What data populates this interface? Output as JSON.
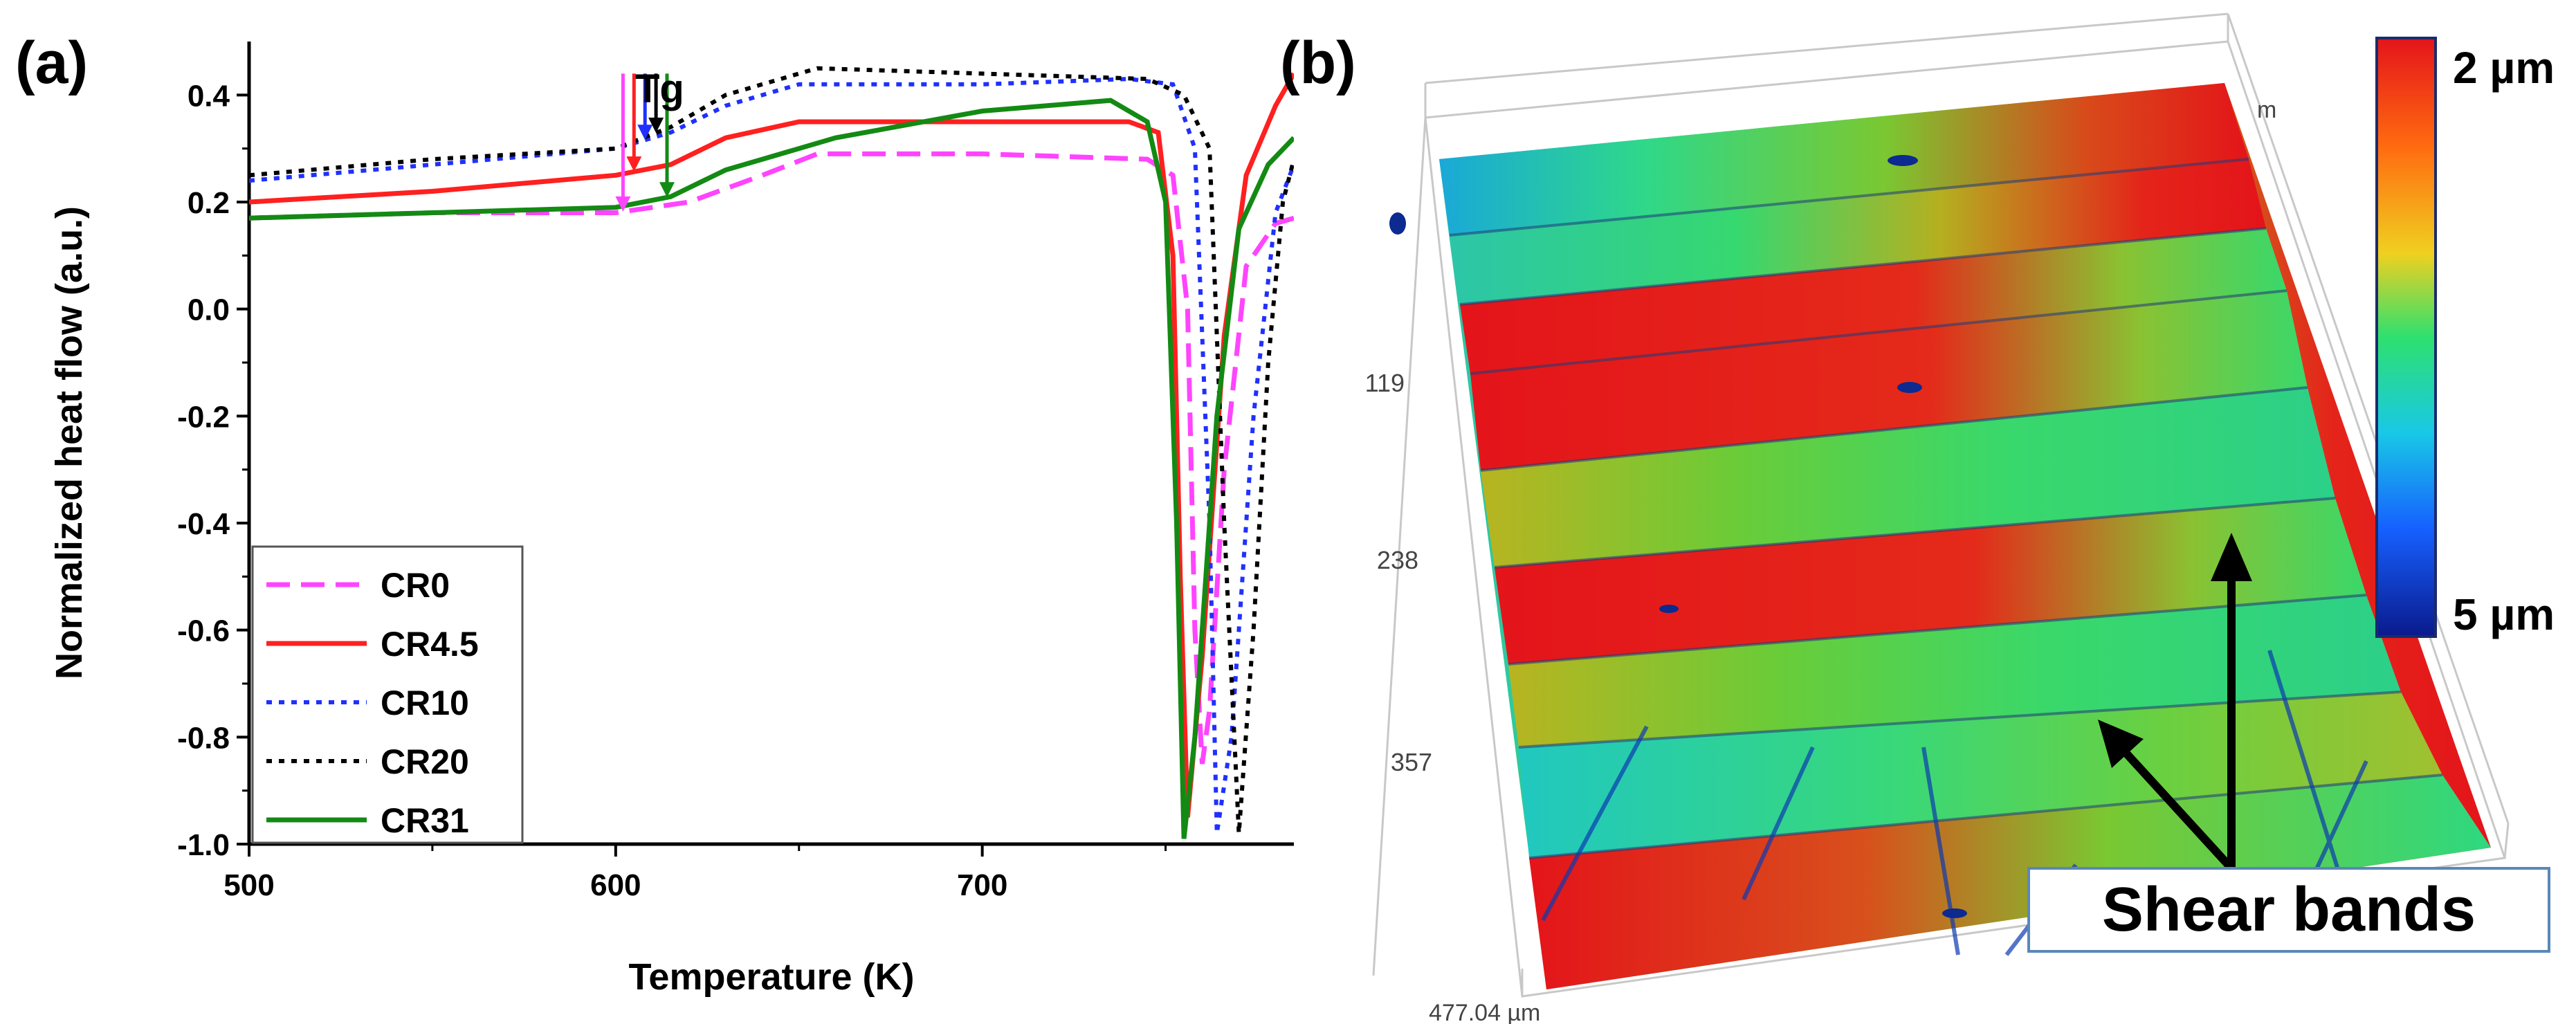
{
  "figure": {
    "panel_a_label": "(a)",
    "panel_b_label": "(b)"
  },
  "chart_data": [
    {
      "type": "line",
      "title": "",
      "xlabel": "Temperature (K)",
      "ylabel": "Normalized heat flow (a.u.)",
      "xlim": [
        500,
        785
      ],
      "ylim": [
        -1.0,
        0.5
      ],
      "x_ticks": [
        500,
        600,
        700
      ],
      "x_tick_labels": [
        "500",
        "600",
        "700"
      ],
      "y_ticks": [
        -1.0,
        -0.8,
        -0.6,
        -0.4,
        -0.2,
        0.0,
        0.2,
        0.4
      ],
      "y_tick_labels": [
        "-1.0",
        "-0.8",
        "-0.6",
        "-0.4",
        "-0.2",
        "0.0",
        "0.2",
        "0.4"
      ],
      "annotation": {
        "text": "Tg",
        "markers": [
          {
            "series": "CR0",
            "x": 602
          },
          {
            "series": "CR4.5",
            "x": 605
          },
          {
            "series": "CR10",
            "x": 608
          },
          {
            "series": "CR20",
            "x": 611
          },
          {
            "series": "CR31",
            "x": 614
          }
        ]
      },
      "legend_position": "bottom-left",
      "series": [
        {
          "name": "CR0",
          "color": "#ff44ff",
          "dash": "dash",
          "x": [
            500,
            550,
            600,
            620,
            640,
            655,
            700,
            745,
            752,
            756,
            758,
            760,
            762,
            766,
            772,
            780,
            785
          ],
          "y": [
            0.17,
            0.18,
            0.18,
            0.2,
            0.25,
            0.29,
            0.29,
            0.28,
            0.25,
            0.0,
            -0.6,
            -0.85,
            -0.75,
            -0.3,
            0.08,
            0.16,
            0.17
          ]
        },
        {
          "name": "CR4.5",
          "color": "#ff2020",
          "dash": "solid",
          "x": [
            500,
            550,
            600,
            615,
            630,
            650,
            700,
            740,
            748,
            752,
            754,
            756,
            760,
            766,
            772,
            780,
            785
          ],
          "y": [
            0.2,
            0.22,
            0.25,
            0.27,
            0.32,
            0.35,
            0.35,
            0.35,
            0.33,
            0.1,
            -0.5,
            -0.95,
            -0.65,
            -0.05,
            0.25,
            0.38,
            0.44
          ]
        },
        {
          "name": "CR10",
          "color": "#2030ff",
          "dash": "dot",
          "x": [
            500,
            550,
            600,
            615,
            630,
            650,
            700,
            740,
            752,
            758,
            762,
            764,
            768,
            774,
            780,
            785
          ],
          "y": [
            0.24,
            0.27,
            0.3,
            0.33,
            0.38,
            0.42,
            0.42,
            0.43,
            0.42,
            0.3,
            -0.4,
            -0.98,
            -0.8,
            -0.2,
            0.18,
            0.27
          ]
        },
        {
          "name": "CR20",
          "color": "#000000",
          "dash": "dot",
          "x": [
            500,
            550,
            600,
            615,
            630,
            655,
            700,
            745,
            755,
            762,
            766,
            770,
            774,
            778,
            782,
            785
          ],
          "y": [
            0.25,
            0.28,
            0.3,
            0.34,
            0.4,
            0.45,
            0.44,
            0.43,
            0.4,
            0.3,
            -0.4,
            -0.98,
            -0.6,
            -0.1,
            0.2,
            0.28
          ]
        },
        {
          "name": "CR31",
          "color": "#138a13",
          "dash": "solid",
          "x": [
            500,
            550,
            600,
            615,
            630,
            660,
            700,
            735,
            745,
            750,
            753,
            755,
            758,
            764,
            770,
            778,
            785
          ],
          "y": [
            0.17,
            0.18,
            0.19,
            0.21,
            0.26,
            0.32,
            0.37,
            0.39,
            0.35,
            0.2,
            -0.4,
            -0.99,
            -0.8,
            -0.2,
            0.15,
            0.27,
            0.32
          ]
        }
      ]
    },
    {
      "type": "heatmap",
      "title": "",
      "colorbar_top_label": "2 µm",
      "colorbar_bottom_label": "5 µm",
      "axis_tick_labels": [
        "119",
        "238",
        "357"
      ],
      "axis_end_label": "477.04 µm",
      "axis_top_label": "m",
      "annotation": "Shear bands",
      "colors": [
        "#0a1a8c",
        "#1660ff",
        "#19c8e6",
        "#2ee06e",
        "#7acc32",
        "#f0d020",
        "#ff6a10",
        "#e4141a"
      ]
    }
  ]
}
